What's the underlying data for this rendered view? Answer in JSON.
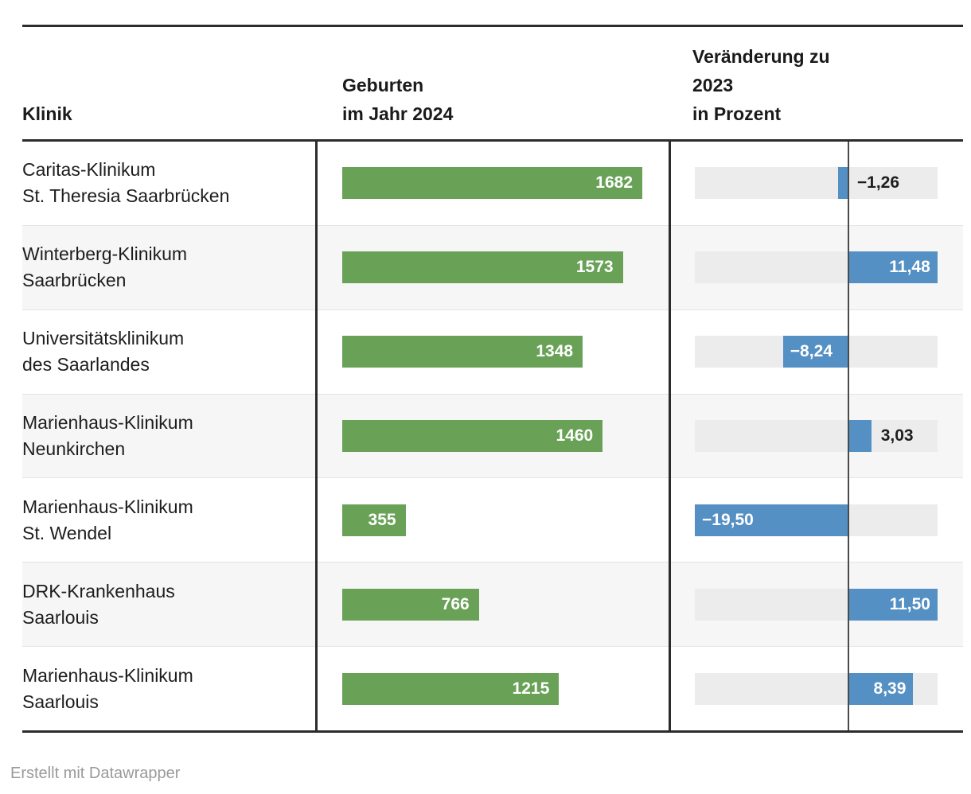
{
  "header": {
    "col_klinik": "Klinik",
    "col_births": "Geburten\nim Jahr 2024",
    "col_change": "Veränderung zu\n2023\nin Prozent"
  },
  "rows": [
    {
      "name": "Caritas-Klinikum\nSt. Theresia Saarbrücken",
      "births": 1682,
      "births_label": "1682",
      "pct": -1.26,
      "pct_label": "−1,26",
      "pct_label_inside": false
    },
    {
      "name": "Winterberg-Klinikum\nSaarbrücken",
      "births": 1573,
      "births_label": "1573",
      "pct": 11.48,
      "pct_label": "11,48",
      "pct_label_inside": true
    },
    {
      "name": "Universitätsklinikum\ndes Saarlandes",
      "births": 1348,
      "births_label": "1348",
      "pct": -8.24,
      "pct_label": "−8,24",
      "pct_label_inside": true
    },
    {
      "name": "Marienhaus-Klinikum\nNeunkirchen",
      "births": 1460,
      "births_label": "1460",
      "pct": 3.03,
      "pct_label": "3,03",
      "pct_label_inside": false
    },
    {
      "name": "Marienhaus-Klinikum\nSt. Wendel",
      "births": 355,
      "births_label": "355",
      "pct": -19.5,
      "pct_label": "−19,50",
      "pct_label_inside": true
    },
    {
      "name": "DRK-Krankenhaus\nSaarlouis",
      "births": 766,
      "births_label": "766",
      "pct": 11.5,
      "pct_label": "11,50",
      "pct_label_inside": true
    },
    {
      "name": "Marienhaus-Klinikum\nSaarlouis",
      "births": 1215,
      "births_label": "1215",
      "pct": 8.39,
      "pct_label": "8,39",
      "pct_label_inside": true
    }
  ],
  "footer": {
    "credit": "Erstellt mit Datawrapper"
  },
  "colors": {
    "births_bar": "#69a257",
    "pct_bar": "#5590c4",
    "pct_track": "#ececec",
    "alt_row": "#f6f6f6",
    "rule": "#2b2b2b",
    "zero_axis": "#4a4a4a",
    "text": "#1d1d1d",
    "credit_text": "#9a9a9a"
  },
  "chart_data": {
    "type": "bar",
    "categories": [
      "Caritas-Klinikum St. Theresia Saarbrücken",
      "Winterberg-Klinikum Saarbrücken",
      "Universitätsklinikum des Saarlandes",
      "Marienhaus-Klinikum Neunkirchen",
      "Marienhaus-Klinikum St. Wendel",
      "DRK-Krankenhaus Saarlouis",
      "Marienhaus-Klinikum Saarlouis"
    ],
    "series": [
      {
        "name": "Geburten im Jahr 2024",
        "values": [
          1682,
          1573,
          1348,
          1460,
          355,
          766,
          1215
        ]
      },
      {
        "name": "Veränderung zu 2023 in Prozent",
        "values": [
          -1.26,
          11.48,
          -8.24,
          3.03,
          -19.5,
          11.5,
          8.39
        ]
      }
    ],
    "births_max": 1682,
    "pct_domain": [
      -19.5,
      11.5
    ],
    "orientation": "horizontal",
    "grid": false,
    "legend": false
  }
}
